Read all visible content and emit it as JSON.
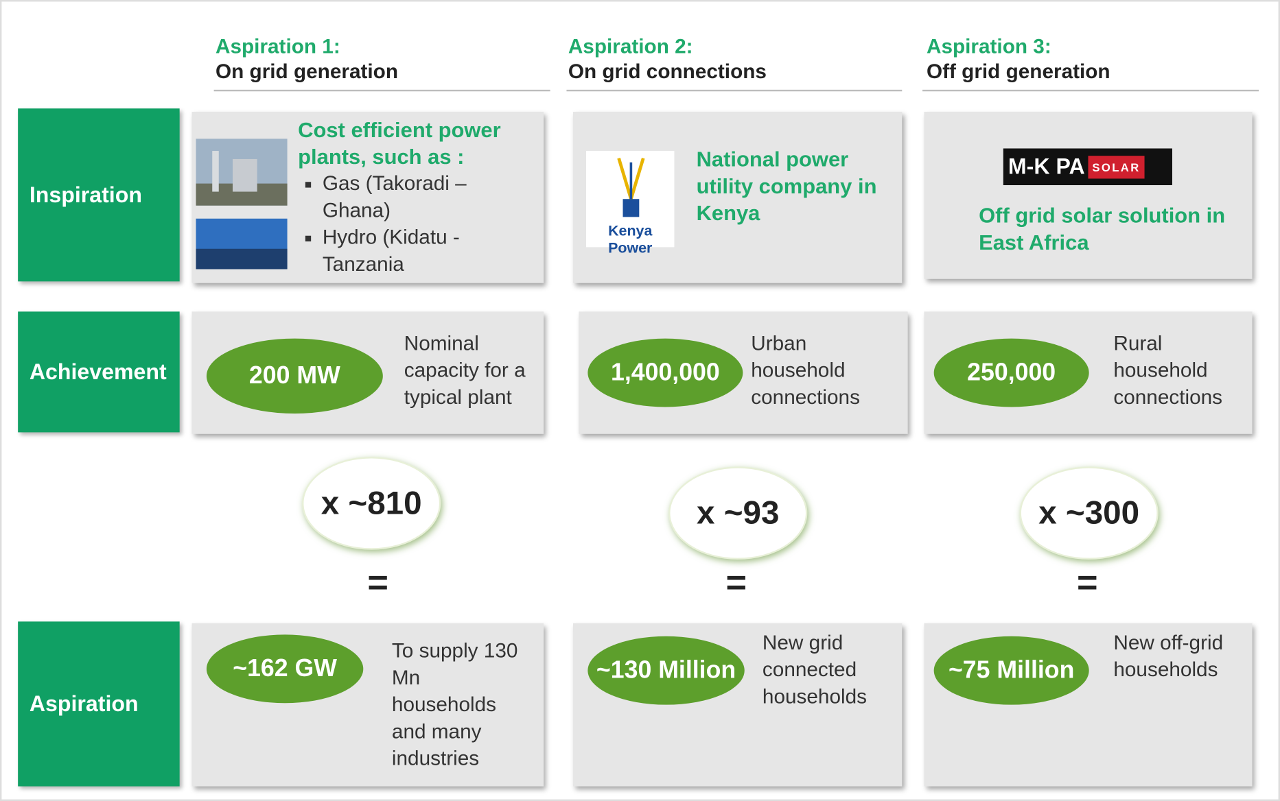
{
  "columns": [
    {
      "heading": "Aspiration 1:",
      "subheading": "On grid generation"
    },
    {
      "heading": "Aspiration 2:",
      "subheading": "On grid connections"
    },
    {
      "heading": "Aspiration 3:",
      "subheading": "Off  grid generation"
    }
  ],
  "row_labels": [
    "Inspiration",
    "Achievement",
    "Aspiration"
  ],
  "inspiration": [
    {
      "title": "Cost efficient power plants, such as :",
      "bullets": [
        "Gas (Takoradi – Ghana)",
        "Hydro (Kidatu - Tanzania"
      ]
    },
    {
      "title": "National power utility company in Kenya",
      "logo": "Kenya Power"
    },
    {
      "title": "Off grid solar solution in East Africa",
      "logo": "M-K PA",
      "logo_tag": "SOLAR"
    }
  ],
  "achievement": [
    {
      "value": "200 MW",
      "text": "Nominal capacity for a typical plant"
    },
    {
      "value": "1,400,000",
      "text": "Urban household connections"
    },
    {
      "value": "250,000",
      "text": "Rural household connections"
    }
  ],
  "multipliers": [
    "x ~810",
    "x ~93",
    "x ~300"
  ],
  "equals": [
    "=",
    "=",
    "="
  ],
  "aspiration": [
    {
      "value": "~162 GW",
      "text": "To supply 130 Mn households and many industries"
    },
    {
      "value": "~130 Million",
      "text": "New grid connected households"
    },
    {
      "value": "~75 Million",
      "text": "New off-grid households"
    }
  ]
}
